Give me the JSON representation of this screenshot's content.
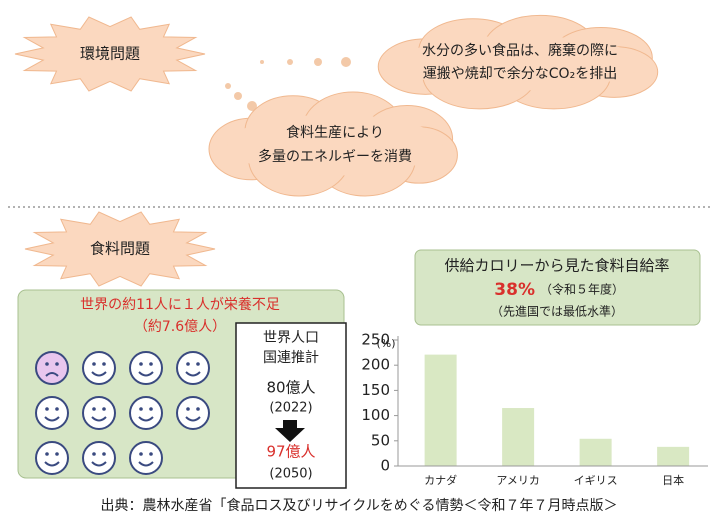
{
  "env": {
    "heading": "環境問題",
    "bubble1": [
      "水分の多い食品は、廃棄の際に",
      "運搬や焼却で余分なCO₂を排出"
    ],
    "bubble2": [
      "食料生産により",
      "多量のエネルギーを消費"
    ]
  },
  "food": {
    "heading": "食料問題",
    "undernourished": [
      "世界の約11人に１人が栄養不足",
      "（約7.6億人）"
    ],
    "population": {
      "title": [
        "世界人口",
        "国連推計"
      ],
      "now": "80億人",
      "now_year": "(2022)",
      "future": "97億人",
      "future_year": "(2050)"
    }
  },
  "chart_data": {
    "type": "bar",
    "title": "供給カロリーから見た食料自給率",
    "highlight": "38%",
    "highlight_note": "（令和５年度）",
    "subtitle": "（先進国では最低水準）",
    "ylabel": "(%)",
    "categories": [
      "カナダ",
      "アメリカ",
      "イギリス",
      "日本"
    ],
    "values": [
      221,
      115,
      54,
      38
    ],
    "color": "#d9e8c3",
    "ylim": [
      0,
      250
    ],
    "yticks": [
      0,
      50,
      100,
      150,
      200,
      250
    ]
  },
  "source": "出典：農林水産省「食品ロス及びリサイクルをめぐる情勢＜令和７年７月時点版＞"
}
